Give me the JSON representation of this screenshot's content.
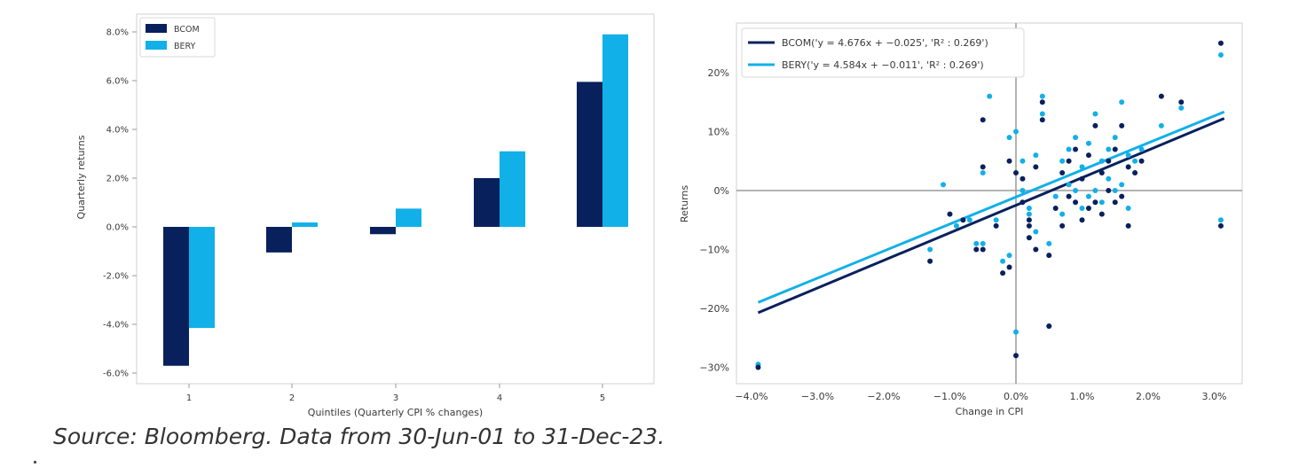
{
  "source": "Source: Bloomberg. Data from 30-Jun-01 to 31-Dec-23.",
  "colors": {
    "bcom": "#08205c",
    "bery": "#12b0e8",
    "axis": "#9a9a9a"
  },
  "chart_data": [
    {
      "type": "bar",
      "xlabel": "Quintiles (Quarterly CPI % changes)",
      "ylabel": "Quarterly returns",
      "categories": [
        "1",
        "2",
        "3",
        "4",
        "5"
      ],
      "ylim": [
        -6.3,
        8.3
      ],
      "yticks": [
        -6,
        -4,
        -2,
        0,
        2,
        4,
        6,
        8
      ],
      "ytick_labels": [
        "-6.0%",
        "-4.0%",
        "-2.0%",
        "0.0%",
        "2.0%",
        "4.0%",
        "6.0%",
        "8.0%"
      ],
      "grid": false,
      "legend_position": "top-left",
      "series": [
        {
          "name": "BCOM",
          "color": "#08205c",
          "values": [
            -5.7,
            -1.05,
            -0.3,
            2.0,
            5.95
          ]
        },
        {
          "name": "BERY",
          "color": "#12b0e8",
          "values": [
            -4.15,
            0.18,
            0.75,
            3.1,
            7.9
          ]
        }
      ]
    },
    {
      "type": "scatter",
      "xlabel": "Change in CPI",
      "ylabel": "Returns",
      "xlim": [
        -4.2,
        3.4
      ],
      "ylim": [
        -33,
        26.5
      ],
      "xticks": [
        -4,
        -3,
        -2,
        -1,
        0,
        1,
        2,
        3
      ],
      "xtick_labels": [
        "−4.0%",
        "−3.0%",
        "−2.0%",
        "−1.0%",
        "0.0%",
        "1.0%",
        "2.0%",
        "3.0%"
      ],
      "yticks": [
        -30,
        -20,
        -10,
        0,
        10,
        20
      ],
      "ytick_labels": [
        "−30%",
        "−20%",
        "−10%",
        "0%",
        "10%",
        "20%"
      ],
      "grid": false,
      "legend_position": "top-left",
      "legend": [
        {
          "series": "BCOM",
          "text": "BCOM('y = 4.676x + −0.025', 'R² : 0.269')"
        },
        {
          "series": "BERY",
          "text": "BERY('y = 4.584x + −0.011', 'R² : 0.269')"
        }
      ],
      "series": [
        {
          "name": "BCOM",
          "color": "#08205c",
          "fit": {
            "slope": 4.676,
            "intercept": -0.025,
            "r2": 0.269
          },
          "points": [
            [
              -3.9,
              -30
            ],
            [
              -1.3,
              -12
            ],
            [
              -1.0,
              -4
            ],
            [
              -0.8,
              -5
            ],
            [
              -0.6,
              -10
            ],
            [
              -0.5,
              -10
            ],
            [
              -0.5,
              4
            ],
            [
              -0.5,
              12
            ],
            [
              -0.3,
              -6
            ],
            [
              -0.2,
              -14
            ],
            [
              -0.1,
              -13
            ],
            [
              0.0,
              -28
            ],
            [
              -0.1,
              5
            ],
            [
              0.0,
              3
            ],
            [
              0.1,
              2
            ],
            [
              0.1,
              -2
            ],
            [
              0.2,
              -5
            ],
            [
              0.2,
              -6
            ],
            [
              0.2,
              -8
            ],
            [
              0.3,
              -10
            ],
            [
              0.3,
              4
            ],
            [
              0.4,
              12
            ],
            [
              0.4,
              15
            ],
            [
              0.5,
              -23
            ],
            [
              0.5,
              -11
            ],
            [
              0.6,
              -3
            ],
            [
              0.7,
              -6
            ],
            [
              0.7,
              3
            ],
            [
              0.8,
              5
            ],
            [
              0.8,
              -1
            ],
            [
              0.9,
              -2
            ],
            [
              0.9,
              7
            ],
            [
              1.0,
              -5
            ],
            [
              1.0,
              2
            ],
            [
              1.1,
              -3
            ],
            [
              1.1,
              6
            ],
            [
              1.2,
              -2
            ],
            [
              1.2,
              11
            ],
            [
              1.3,
              3
            ],
            [
              1.3,
              -4
            ],
            [
              1.4,
              0
            ],
            [
              1.4,
              5
            ],
            [
              1.5,
              -2
            ],
            [
              1.5,
              7
            ],
            [
              1.6,
              -1
            ],
            [
              1.6,
              11
            ],
            [
              1.7,
              4
            ],
            [
              1.7,
              -6
            ],
            [
              1.8,
              3
            ],
            [
              1.9,
              5
            ],
            [
              2.2,
              16
            ],
            [
              2.5,
              15
            ],
            [
              3.1,
              25
            ],
            [
              3.1,
              -6
            ]
          ]
        },
        {
          "name": "BERY",
          "color": "#12b0e8",
          "points": [
            [
              -3.9,
              -29.5
            ],
            [
              -1.3,
              -10
            ],
            [
              -1.1,
              1
            ],
            [
              -0.9,
              -6
            ],
            [
              -0.7,
              -5
            ],
            [
              -0.6,
              -9
            ],
            [
              -0.5,
              -9
            ],
            [
              -0.5,
              3
            ],
            [
              -0.4,
              16
            ],
            [
              -0.3,
              -5
            ],
            [
              -0.2,
              -12
            ],
            [
              -0.1,
              -11
            ],
            [
              0.0,
              -24
            ],
            [
              -0.1,
              9
            ],
            [
              0.0,
              10
            ],
            [
              0.1,
              5
            ],
            [
              0.1,
              0
            ],
            [
              0.2,
              -3
            ],
            [
              0.2,
              -4
            ],
            [
              0.3,
              -7
            ],
            [
              0.3,
              6
            ],
            [
              0.4,
              13
            ],
            [
              0.4,
              16
            ],
            [
              0.5,
              -23
            ],
            [
              0.5,
              -9
            ],
            [
              0.6,
              -1
            ],
            [
              0.7,
              -4
            ],
            [
              0.7,
              5
            ],
            [
              0.8,
              7
            ],
            [
              0.8,
              1
            ],
            [
              0.9,
              0
            ],
            [
              0.9,
              9
            ],
            [
              1.0,
              -3
            ],
            [
              1.0,
              4
            ],
            [
              1.1,
              -1
            ],
            [
              1.1,
              8
            ],
            [
              1.2,
              0
            ],
            [
              1.2,
              13
            ],
            [
              1.3,
              5
            ],
            [
              1.3,
              -2
            ],
            [
              1.4,
              2
            ],
            [
              1.4,
              7
            ],
            [
              1.5,
              0
            ],
            [
              1.5,
              9
            ],
            [
              1.6,
              1
            ],
            [
              1.6,
              15
            ],
            [
              1.7,
              6
            ],
            [
              1.7,
              -3
            ],
            [
              1.8,
              5
            ],
            [
              1.9,
              7
            ],
            [
              2.2,
              11
            ],
            [
              2.5,
              14
            ],
            [
              3.1,
              23
            ],
            [
              3.1,
              -5
            ]
          ]
        }
      ]
    }
  ]
}
